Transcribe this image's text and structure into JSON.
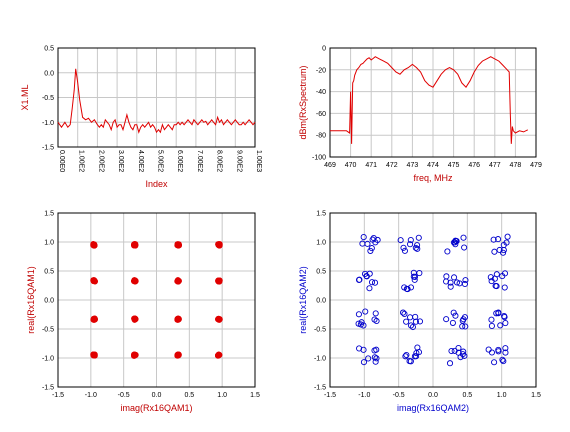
{
  "chart_data": [
    {
      "type": "line",
      "ylabel": "X1.ML",
      "xlabel": "Index",
      "xlim": [
        0,
        10
      ],
      "ylim": [
        -1.5,
        0.5
      ],
      "xticks": [
        0,
        1,
        2,
        3,
        4,
        5,
        6,
        7,
        8,
        9,
        10
      ],
      "xticklabels": [
        "0.00E0",
        "1.00E2",
        "2.00E2",
        "3.00E2",
        "4.00E2",
        "5.00E2",
        "6.00E2",
        "7.00E2",
        "8.00E2",
        "9.00E2",
        "1.00E3"
      ],
      "yticks": [
        0.5,
        0.0,
        -0.5,
        -1.0,
        -1.5
      ],
      "yticklabels": [
        "0.5",
        "0.0",
        "-0.5",
        "-1.0",
        "-1.5"
      ],
      "grid": true,
      "color": "#e00000",
      "series": [
        {
          "x": [
            0.0,
            0.18,
            0.35,
            0.5,
            0.62,
            0.72,
            0.82,
            0.9,
            1.0,
            1.1,
            1.25,
            1.4,
            1.55,
            1.7,
            1.85,
            2.0,
            2.1,
            2.2,
            2.3,
            2.4,
            2.5,
            2.6,
            2.7,
            2.8,
            2.9,
            3.0,
            3.1,
            3.2,
            3.3,
            3.4,
            3.5,
            3.6,
            3.7,
            3.8,
            3.9,
            4.0,
            4.1,
            4.2,
            4.3,
            4.4,
            4.5,
            4.6,
            4.7,
            4.8,
            4.9,
            5.0,
            5.1,
            5.2,
            5.3,
            5.4,
            5.5,
            5.6,
            5.7,
            5.8,
            5.9,
            6.0,
            6.1,
            6.2,
            6.3,
            6.4,
            6.5,
            6.6,
            6.7,
            6.8,
            6.9,
            7.0,
            7.1,
            7.2,
            7.3,
            7.4,
            7.5,
            7.6,
            7.7,
            7.8,
            7.9,
            8.0,
            8.1,
            8.2,
            8.3,
            8.4,
            8.5,
            8.6,
            8.7,
            8.8,
            8.9,
            9.0,
            9.1,
            9.2,
            9.3,
            9.4,
            9.5,
            9.6,
            9.7,
            9.8,
            9.9,
            10.0
          ],
          "y": [
            -1.0,
            -1.1,
            -1.0,
            -1.1,
            -1.05,
            -0.72,
            -0.35,
            0.08,
            -0.2,
            -0.55,
            -0.9,
            -0.95,
            -0.92,
            -1.0,
            -0.95,
            -1.05,
            -1.1,
            -1.05,
            -1.1,
            -0.95,
            -1.0,
            -1.05,
            -1.15,
            -1.0,
            -0.95,
            -1.1,
            -1.05,
            -1.05,
            -1.15,
            -1.0,
            -0.85,
            -1.0,
            -1.1,
            -1.15,
            -1.05,
            -1.05,
            -1.2,
            -1.1,
            -1.05,
            -1.1,
            -1.05,
            -1.0,
            -1.1,
            -1.05,
            -1.1,
            -1.2,
            -1.15,
            -1.2,
            -1.05,
            -1.15,
            -1.1,
            -1.05,
            -1.1,
            -1.15,
            -1.05,
            -1.05,
            -1.0,
            -1.05,
            -1.0,
            -1.05,
            -1.0,
            -0.95,
            -1.0,
            -1.05,
            -0.95,
            -1.0,
            -1.05,
            -1.0,
            -0.95,
            -1.0,
            -0.98,
            -1.05,
            -1.0,
            -0.95,
            -1.0,
            -1.05,
            -0.9,
            -1.0,
            -0.95,
            -1.05,
            -1.0,
            -0.95,
            -1.0,
            -1.05,
            -1.0,
            -0.95,
            -1.0,
            -1.05,
            -1.05,
            -1.0,
            -1.05,
            -1.0,
            -0.95,
            -1.0,
            -1.05,
            -1.0
          ]
        }
      ]
    },
    {
      "type": "line",
      "ylabel": "dBm(RxSpectrum)",
      "xlabel": "freq, MHz",
      "xlim": [
        469,
        479
      ],
      "ylim": [
        -100,
        0
      ],
      "xticks": [
        469,
        470,
        471,
        472,
        473,
        474,
        475,
        476,
        477,
        478,
        479
      ],
      "yticks": [
        0,
        -20,
        -40,
        -60,
        -80,
        -100
      ],
      "grid": true,
      "color": "#e00000",
      "series": [
        {
          "x": [
            469.0,
            469.3,
            469.6,
            469.8,
            469.95,
            470.0,
            470.05,
            470.1,
            470.15,
            470.2,
            470.3,
            470.4,
            470.5,
            470.6,
            470.7,
            470.8,
            470.9,
            471.0,
            471.2,
            471.4,
            471.6,
            471.8,
            472.0,
            472.2,
            472.4,
            472.6,
            472.8,
            473.0,
            473.2,
            473.4,
            473.6,
            473.8,
            474.0,
            474.2,
            474.4,
            474.6,
            474.8,
            475.0,
            475.2,
            475.4,
            475.6,
            475.8,
            476.0,
            476.2,
            476.4,
            476.6,
            476.8,
            477.0,
            477.2,
            477.4,
            477.6,
            477.7,
            477.75,
            477.8,
            477.85,
            477.9,
            478.0,
            478.2,
            478.4,
            478.6
          ],
          "y": [
            -76,
            -76,
            -76,
            -76,
            -78,
            -40,
            -88,
            -32,
            -30,
            -25,
            -20,
            -18,
            -15,
            -14,
            -12,
            -10,
            -9,
            -11,
            -8,
            -10,
            -12,
            -14,
            -18,
            -22,
            -24,
            -20,
            -18,
            -15,
            -18,
            -22,
            -30,
            -34,
            -36,
            -30,
            -24,
            -20,
            -18,
            -20,
            -24,
            -32,
            -36,
            -30,
            -22,
            -16,
            -12,
            -10,
            -8,
            -10,
            -12,
            -16,
            -20,
            -22,
            -60,
            -88,
            -72,
            -76,
            -78,
            -76,
            -77,
            -75
          ]
        }
      ]
    },
    {
      "type": "scatter",
      "ylabel": "real(Rx16QAM1)",
      "xlabel": "imag(Rx16QAM1)",
      "xlim": [
        -1.5,
        1.5
      ],
      "ylim": [
        -1.5,
        1.5
      ],
      "xticks": [
        -1.5,
        -1.0,
        -0.5,
        0.0,
        0.5,
        1.0,
        1.5
      ],
      "yticks": [
        1.5,
        1.0,
        0.5,
        0.0,
        -0.5,
        -1.0,
        -1.5
      ],
      "ticklabels": [
        "-1.5",
        "-1.0",
        "-0.5",
        "0.0",
        "0.5",
        "1.0",
        "1.5"
      ],
      "grid": true,
      "marker": "filled-circle",
      "color": "#e00000",
      "clusters": [
        -0.95,
        -0.33,
        0.33,
        0.95
      ],
      "spread": 0.015
    },
    {
      "type": "scatter",
      "ylabel": "real(Rx16QAM2)",
      "xlabel": "imag(Rx16QAM2)",
      "xlim": [
        -1.5,
        1.5
      ],
      "ylim": [
        -1.5,
        1.5
      ],
      "xticks": [
        -1.5,
        -1.0,
        -0.5,
        0.0,
        0.5,
        1.0,
        1.5
      ],
      "yticks": [
        1.5,
        1.0,
        0.5,
        0.0,
        -0.5,
        -1.0,
        -1.5
      ],
      "ticklabels": [
        "-1.5",
        "-1.0",
        "-0.5",
        "0.0",
        "0.5",
        "1.0",
        "1.5"
      ],
      "grid": true,
      "marker": "open-circle",
      "color": "#0000cc",
      "clusters": [
        -0.95,
        -0.33,
        0.33,
        0.95
      ],
      "spread": 0.09
    }
  ]
}
